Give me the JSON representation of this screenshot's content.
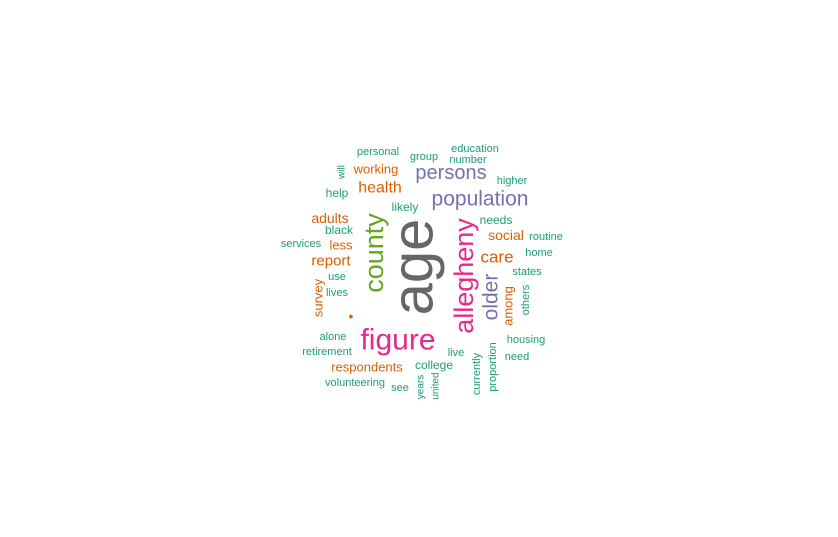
{
  "chart_data": {
    "type": "wordcloud",
    "title": "",
    "colors": {
      "gray": "#666666",
      "pink": "#e7298a",
      "green": "#66a61e",
      "purple": "#7570b3",
      "orange": "#d95f02",
      "teal": "#1b9e77"
    },
    "words": [
      {
        "word": "age",
        "color": "gray"
      },
      {
        "word": "figure",
        "color": "pink"
      },
      {
        "word": "allegheny",
        "color": "pink"
      },
      {
        "word": "county",
        "color": "green"
      },
      {
        "word": "population",
        "color": "purple"
      },
      {
        "word": "persons",
        "color": "purple"
      },
      {
        "word": "older",
        "color": "purple"
      },
      {
        "word": "care",
        "color": "orange"
      },
      {
        "word": "health",
        "color": "orange"
      },
      {
        "word": "report",
        "color": "orange"
      },
      {
        "word": "social",
        "color": "orange"
      },
      {
        "word": "adults",
        "color": "orange"
      },
      {
        "word": "working",
        "color": "orange"
      },
      {
        "word": "respondents",
        "color": "orange"
      },
      {
        "word": "among",
        "color": "orange"
      },
      {
        "word": "survey",
        "color": "orange"
      },
      {
        "word": "less",
        "color": "orange"
      },
      {
        "word": "•",
        "color": "orange"
      },
      {
        "word": "personal",
        "color": "teal"
      },
      {
        "word": "group",
        "color": "teal"
      },
      {
        "word": "education",
        "color": "teal"
      },
      {
        "word": "number",
        "color": "teal"
      },
      {
        "word": "will",
        "color": "teal"
      },
      {
        "word": "higher",
        "color": "teal"
      },
      {
        "word": "help",
        "color": "teal"
      },
      {
        "word": "likely",
        "color": "teal"
      },
      {
        "word": "needs",
        "color": "teal"
      },
      {
        "word": "black",
        "color": "teal"
      },
      {
        "word": "routine",
        "color": "teal"
      },
      {
        "word": "services",
        "color": "teal"
      },
      {
        "word": "home",
        "color": "teal"
      },
      {
        "word": "states",
        "color": "teal"
      },
      {
        "word": "use",
        "color": "teal"
      },
      {
        "word": "lives",
        "color": "teal"
      },
      {
        "word": "others",
        "color": "teal"
      },
      {
        "word": "alone",
        "color": "teal"
      },
      {
        "word": "housing",
        "color": "teal"
      },
      {
        "word": "retirement",
        "color": "teal"
      },
      {
        "word": "live",
        "color": "teal"
      },
      {
        "word": "currently",
        "color": "teal"
      },
      {
        "word": "proportion",
        "color": "teal"
      },
      {
        "word": "need",
        "color": "teal"
      },
      {
        "word": "college",
        "color": "teal"
      },
      {
        "word": "volunteering",
        "color": "teal"
      },
      {
        "word": "see",
        "color": "teal"
      },
      {
        "word": "years",
        "color": "teal"
      },
      {
        "word": "united",
        "color": "teal"
      }
    ]
  }
}
